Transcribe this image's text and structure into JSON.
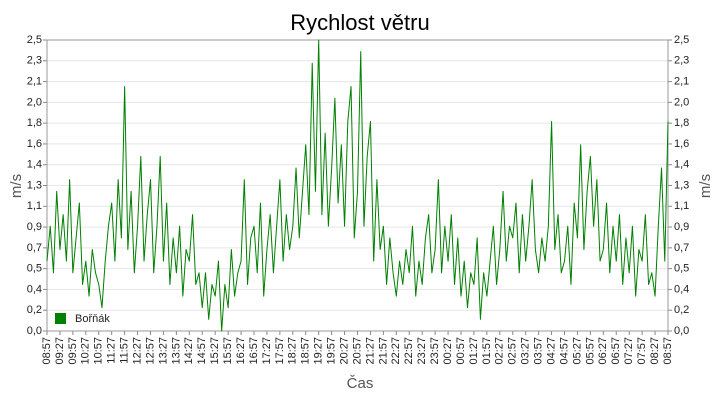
{
  "chart_data": {
    "type": "line",
    "title": "Rychlost větru",
    "x_label": "Čas",
    "y_label": "m/s",
    "categories": [
      "08:57",
      null,
      null,
      null,
      "09:27",
      null,
      null,
      null,
      "09:57",
      null,
      null,
      null,
      "10:27",
      null,
      null,
      null,
      "10:57",
      null,
      null,
      null,
      "11:27",
      null,
      null,
      null,
      "11:57",
      null,
      null,
      null,
      "12:27",
      null,
      null,
      null,
      "12:57",
      null,
      null,
      null,
      "13:27",
      null,
      null,
      null,
      "13:57",
      null,
      null,
      null,
      "14:27",
      null,
      null,
      null,
      "14:57",
      null,
      null,
      null,
      "15:27",
      null,
      null,
      null,
      "15:57",
      null,
      null,
      null,
      "16:27",
      null,
      null,
      null,
      "16:57",
      null,
      null,
      null,
      "17:27",
      null,
      null,
      null,
      "17:57",
      null,
      null,
      null,
      "18:27",
      null,
      null,
      null,
      "18:57",
      null,
      null,
      null,
      "19:27",
      null,
      null,
      null,
      "19:57",
      null,
      null,
      null,
      "20:27",
      null,
      null,
      null,
      "20:57",
      null,
      null,
      null,
      "21:27",
      null,
      null,
      null,
      "21:57",
      null,
      null,
      null,
      "22:27",
      null,
      null,
      null,
      "22:57",
      null,
      null,
      null,
      "23:27",
      null,
      null,
      null,
      "23:57",
      null,
      null,
      null,
      "00:27",
      null,
      null,
      null,
      "00:57",
      null,
      null,
      null,
      "01:27",
      null,
      null,
      null,
      "01:57",
      null,
      null,
      null,
      "02:27",
      null,
      null,
      null,
      "02:57",
      null,
      null,
      null,
      "03:27",
      null,
      null,
      null,
      "03:57",
      null,
      null,
      null,
      "04:27",
      null,
      null,
      null,
      "04:57",
      null,
      null,
      null,
      "05:27",
      null,
      null,
      null,
      "05:57",
      null,
      null,
      null,
      "06:27",
      null,
      null,
      null,
      "06:57",
      null,
      null,
      null,
      "07:27",
      null,
      null,
      null,
      "07:57",
      null,
      null,
      null,
      "08:27",
      null,
      null,
      null,
      "08:57"
    ],
    "series": [
      {
        "name": "Bořňák",
        "color": "#008000",
        "values": [
          0.6,
          0.9,
          0.5,
          1.2,
          0.7,
          1.0,
          0.6,
          1.3,
          0.5,
          0.8,
          1.1,
          0.4,
          0.6,
          0.3,
          0.7,
          0.5,
          0.4,
          0.2,
          0.6,
          0.9,
          1.1,
          0.6,
          1.3,
          0.8,
          2.1,
          0.7,
          1.2,
          0.5,
          0.9,
          1.5,
          0.6,
          1.0,
          1.3,
          0.5,
          0.9,
          1.5,
          0.6,
          1.1,
          0.4,
          0.8,
          0.5,
          0.9,
          0.3,
          0.7,
          0.6,
          1.0,
          0.4,
          0.5,
          0.2,
          0.5,
          0.1,
          0.4,
          0.3,
          0.6,
          0.0,
          0.4,
          0.2,
          0.7,
          0.3,
          0.5,
          0.6,
          1.3,
          0.4,
          0.8,
          0.9,
          0.5,
          1.1,
          0.3,
          0.7,
          1.0,
          0.5,
          0.9,
          1.3,
          0.6,
          1.0,
          0.7,
          0.9,
          1.4,
          0.8,
          1.2,
          1.6,
          1.0,
          2.3,
          1.2,
          2.5,
          1.0,
          1.7,
          0.9,
          1.4,
          2.0,
          1.1,
          1.6,
          0.9,
          1.8,
          2.1,
          0.8,
          1.2,
          2.4,
          0.9,
          1.5,
          1.8,
          0.6,
          1.3,
          0.7,
          0.9,
          0.4,
          0.8,
          0.5,
          0.3,
          0.6,
          0.4,
          0.7,
          0.5,
          0.9,
          0.3,
          0.6,
          0.4,
          0.8,
          1.0,
          0.5,
          0.7,
          1.3,
          0.5,
          0.9,
          0.6,
          1.0,
          0.4,
          0.8,
          0.3,
          0.6,
          0.2,
          0.5,
          0.4,
          0.8,
          0.1,
          0.5,
          0.3,
          0.6,
          0.9,
          0.4,
          0.7,
          1.2,
          0.6,
          0.9,
          0.8,
          1.1,
          0.5,
          1.0,
          0.6,
          0.9,
          1.3,
          0.7,
          0.5,
          0.8,
          0.6,
          0.9,
          1.8,
          0.7,
          1.0,
          0.5,
          0.6,
          0.9,
          0.4,
          1.1,
          0.8,
          1.6,
          0.7,
          1.2,
          1.5,
          0.9,
          1.3,
          0.6,
          0.7,
          1.1,
          0.5,
          0.9,
          0.6,
          1.0,
          0.4,
          0.8,
          0.5,
          0.9,
          0.3,
          0.7,
          0.6,
          1.0,
          0.4,
          0.5,
          0.3,
          0.9,
          1.4,
          0.6,
          1.8
        ]
      }
    ],
    "ylim": [
      0,
      2.5
    ],
    "yticks": [
      {
        "value": 0,
        "label": "0,0"
      },
      {
        "value": 0.1786,
        "label": "0,2"
      },
      {
        "value": 0.3571,
        "label": "0,4"
      },
      {
        "value": 0.5357,
        "label": "0,5"
      },
      {
        "value": 0.7143,
        "label": "0,7"
      },
      {
        "value": 0.8929,
        "label": "0,9"
      },
      {
        "value": 1.0714,
        "label": "1,1"
      },
      {
        "value": 1.25,
        "label": "1,3"
      },
      {
        "value": 1.4286,
        "label": "1,4"
      },
      {
        "value": 1.6071,
        "label": "1,6"
      },
      {
        "value": 1.7857,
        "label": "1,8"
      },
      {
        "value": 1.9643,
        "label": "2,0"
      },
      {
        "value": 2.1429,
        "label": "2,1"
      },
      {
        "value": 2.3214,
        "label": "2,3"
      },
      {
        "value": 2.5,
        "label": "2,5"
      }
    ],
    "grid": true,
    "legend": "lower left"
  }
}
